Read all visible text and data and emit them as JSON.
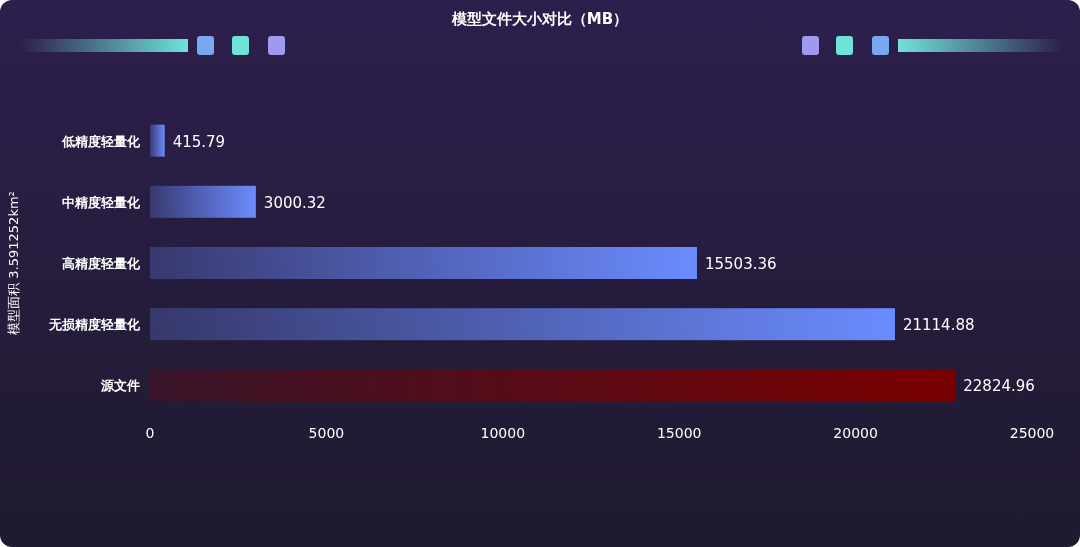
{
  "chart_data": {
    "type": "bar",
    "orientation": "horizontal",
    "title": "模型文件大小对比（MB）",
    "ylabel": "模型面积 3.591252km²",
    "categories": [
      "低精度轻量化",
      "中精度轻量化",
      "高精度轻量化",
      "无损精度轻量化",
      "源文件"
    ],
    "values": [
      415.79,
      3000.32,
      15503.36,
      21114.88,
      22824.96
    ],
    "colors": [
      "#6b8cff",
      "#6b8cff",
      "#6b8cff",
      "#6b8cff",
      "#7a0000"
    ],
    "xlim": [
      0,
      25000
    ],
    "xticks": [
      0,
      5000,
      10000,
      15000,
      20000,
      25000
    ],
    "data_labels": true,
    "grid": false
  }
}
